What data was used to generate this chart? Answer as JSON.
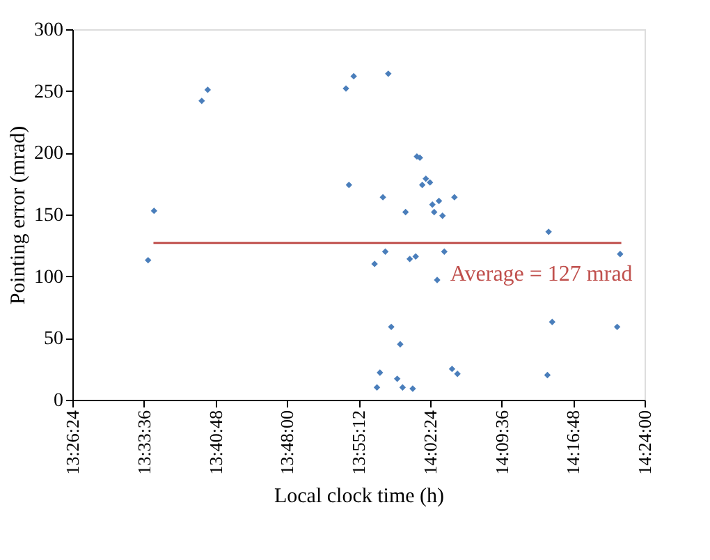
{
  "chart_data": {
    "type": "scatter",
    "xlabel": "Local clock time (h)",
    "ylabel": "Pointing error (mrad)",
    "xlim": [
      13.44,
      14.4
    ],
    "ylim": [
      0,
      300
    ],
    "xticks": [
      {
        "value": 13.44,
        "label": "13:26:24"
      },
      {
        "value": 13.56,
        "label": "13:33:36"
      },
      {
        "value": 13.68,
        "label": "13:40:48"
      },
      {
        "value": 13.8,
        "label": "13:48:00"
      },
      {
        "value": 13.92,
        "label": "13:55:12"
      },
      {
        "value": 14.04,
        "label": "14:02:24"
      },
      {
        "value": 14.16,
        "label": "14:09:36"
      },
      {
        "value": 14.28,
        "label": "14:16:48"
      },
      {
        "value": 14.4,
        "label": "14:24:00"
      }
    ],
    "yticks": [
      0,
      50,
      100,
      150,
      200,
      250,
      300
    ],
    "grid": false,
    "marker": "diamond",
    "series": [
      {
        "color": "#4a7ebb",
        "x": [
          13.567,
          13.577,
          13.657,
          13.667,
          13.899,
          13.912,
          13.904,
          13.97,
          13.961,
          13.999,
          14.018,
          14.023,
          14.033,
          14.04,
          14.027,
          14.044,
          14.055,
          14.047,
          14.061,
          14.081,
          14.239,
          13.965,
          13.947,
          14.006,
          14.016,
          14.064,
          14.052,
          14.359,
          14.245,
          14.354,
          13.975,
          13.99,
          13.956,
          13.951,
          13.985,
          13.994,
          14.011,
          14.077,
          14.086,
          14.237
        ],
        "values": [
          113,
          153,
          242,
          251,
          252,
          262,
          174,
          264,
          164,
          152,
          197,
          196,
          179,
          176,
          174,
          158,
          161,
          152,
          149,
          164,
          136,
          120,
          110,
          114,
          116,
          120,
          97,
          118,
          63,
          59,
          59,
          45,
          22,
          10,
          17,
          10,
          9,
          25,
          21,
          20
        ]
      },
      {
        "type": "line",
        "color": "#c0504d",
        "line_style": "solid",
        "marker": "none",
        "x": [
          13.576,
          14.361
        ],
        "values": [
          127,
          127
        ]
      }
    ],
    "annotations": [
      "Average = 127 mrad"
    ]
  }
}
